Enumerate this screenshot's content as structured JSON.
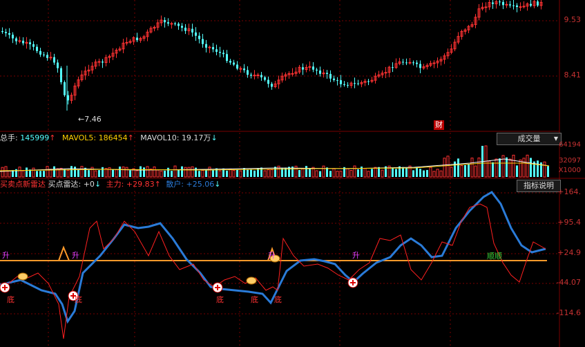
{
  "price_panel": {
    "price_high": "9.53",
    "price_mid": "8.41",
    "low_marker": "←7.46",
    "cai_badge": "财"
  },
  "volume_panel": {
    "zongshou_label": "总手:",
    "zongshou_value": "145999",
    "mavol5_label": "MAVOL5:",
    "mavol5_value": "186454",
    "mavol10_label": "MAVOL10:",
    "mavol10_value": "19.17万",
    "indicator_dropdown": "成交量",
    "axis": [
      "64194",
      "32097",
      "X1000"
    ]
  },
  "radar_panel": {
    "name": "买卖点新雷达",
    "line1_label": "买点雷达:",
    "line1_value": "+0",
    "line2_label": "主力:",
    "line2_value": "+29.83",
    "line3_label": "散户:",
    "line3_value": "+25.06",
    "help_button": "指标说明",
    "axis": [
      "+164.",
      "+95.4",
      "+24.9",
      "-44.07",
      "-114.6"
    ],
    "label_sheng": "升",
    "label_di": "底",
    "label_shunshun": "顺顺"
  },
  "colors": {
    "up": "#ff3232",
    "down": "#54ffff",
    "main_red": "#ff2020",
    "retail_blue": "#2a7bd8",
    "orange": "#ff9a2a",
    "axis_red": "#c83232"
  }
}
